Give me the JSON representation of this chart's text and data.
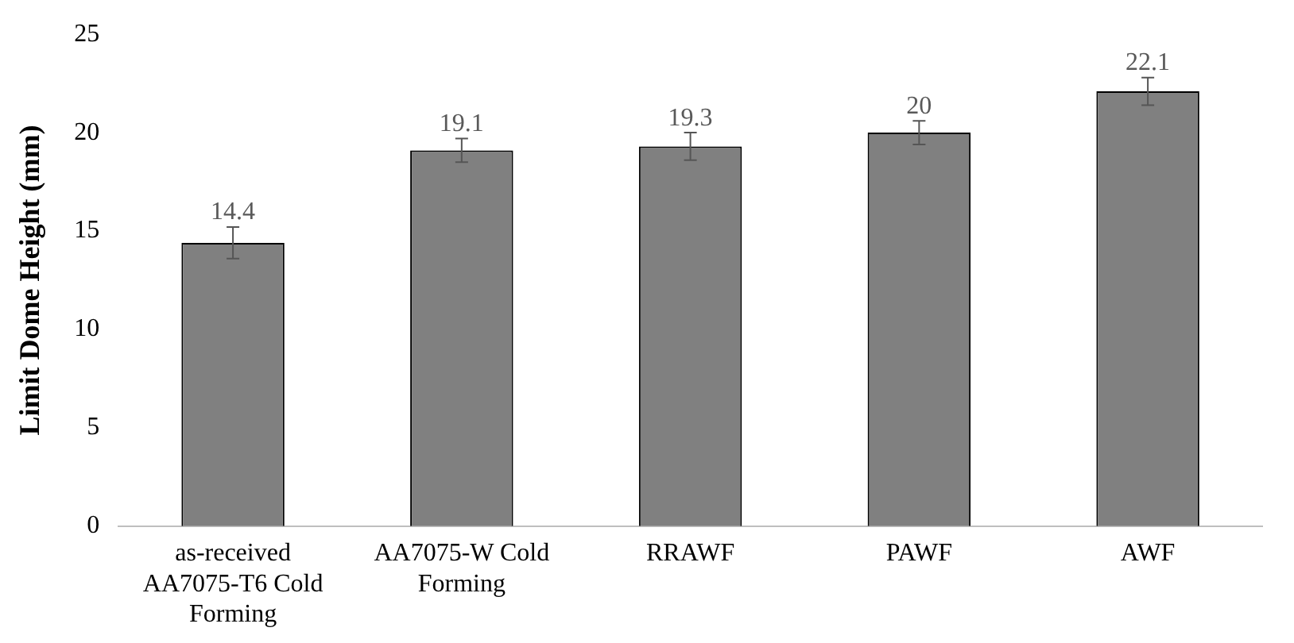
{
  "chart_data": {
    "type": "bar",
    "ylabel": "Limit Dome Height (mm)",
    "categories": [
      "as-received AA7075-T6 Cold Forming",
      "AA7075-W Cold Forming",
      "RRAWF",
      "PAWF",
      "AWF"
    ],
    "values": [
      14.4,
      19.1,
      19.3,
      20,
      22.1
    ],
    "errors": [
      0.8,
      0.6,
      0.7,
      0.6,
      0.7
    ],
    "color": "#808080",
    "data_labels": true,
    "grid": false,
    "legend": false,
    "ylim": [
      0,
      25
    ],
    "yticks": [
      0,
      5,
      10,
      15,
      20,
      25
    ]
  }
}
